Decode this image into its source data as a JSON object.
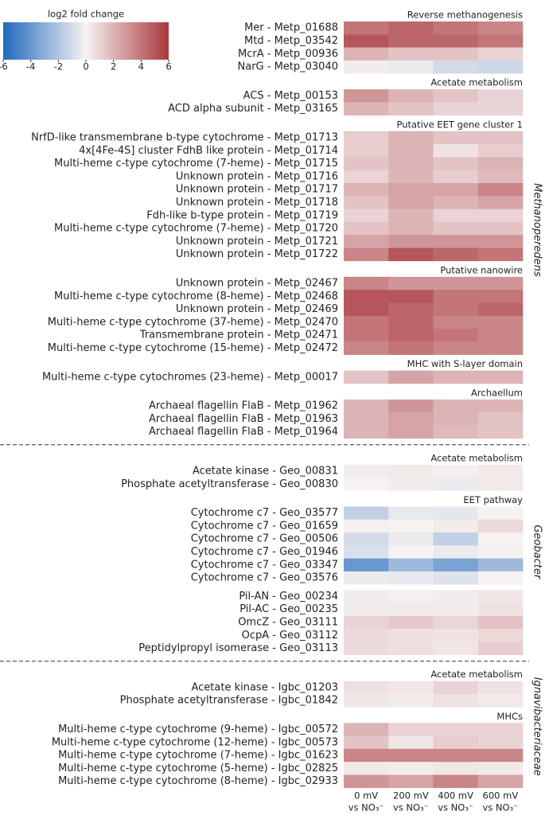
{
  "chart_data": {
    "type": "heatmap",
    "colorbar": {
      "label": "log2 fold change",
      "lim": [
        -6,
        6
      ],
      "ticks": [
        -6,
        -4,
        -2,
        0,
        2,
        4,
        6
      ]
    },
    "columns": [
      [
        "0 mV",
        "vs NO₃⁻"
      ],
      [
        "200 mV",
        "vs NO₃⁻"
      ],
      [
        "400 mV",
        "vs NO₃⁻"
      ],
      [
        "600 mV",
        "vs NO₃⁻"
      ]
    ],
    "organisms": [
      {
        "name": "Methanoperedens",
        "groups": [
          {
            "title": "Reverse methanogenesis",
            "rows": [
              {
                "label": "Mer - Metp_01688",
                "values": [
                  4,
                  4.5,
                  4,
                  3.5
                ]
              },
              {
                "label": "Mtd - Metp_03542",
                "values": [
                  5,
                  4.5,
                  4.5,
                  4
                ]
              },
              {
                "label": "McrA - Metp_00936",
                "values": [
                  2,
                  1.5,
                  1.5,
                  1
                ]
              },
              {
                "label": "NarG - Metp_03040",
                "values": [
                  0.2,
                  -0.3,
                  -1,
                  -1.2
                ]
              }
            ]
          },
          {
            "title": "Acetate metabolism",
            "rows": [
              {
                "label": "ACS - Metp_00153",
                "values": [
                  3,
                  2,
                  1.5,
                  1
                ]
              },
              {
                "label": "ACD alpha subunit - Metp_03165",
                "values": [
                  2,
                  1.5,
                  1,
                  1
                ]
              }
            ]
          },
          {
            "title": "Putative EET gene cluster 1",
            "rows": [
              {
                "label": "NrfD-like transmembrane b-type cytochrome - Metp_01713",
                "values": [
                  1.2,
                  2,
                  1.5,
                  1.5
                ]
              },
              {
                "label": "4x[4Fe-4S] cluster FdhB like protein - Metp_01714",
                "values": [
                  1.2,
                  2,
                  0.5,
                  1.2
                ]
              },
              {
                "label": "Multi-heme c-type cytochrome (7-heme) - Metp_01715",
                "values": [
                  1.5,
                  2,
                  1.5,
                  2
                ]
              },
              {
                "label": "Unknown protein - Metp_01716",
                "values": [
                  1,
                  2,
                  1.2,
                  1.8
                ]
              },
              {
                "label": "Unknown protein - Metp_01717",
                "values": [
                  2,
                  2.5,
                  2.5,
                  3.5
                ]
              },
              {
                "label": "Unknown protein - Metp_01718",
                "values": [
                  1.5,
                  2.5,
                  2,
                  2.5
                ]
              },
              {
                "label": "Fdh-like b-type protein - Metp_01719",
                "values": [
                  1,
                  2,
                  1,
                  1
                ]
              },
              {
                "label": "Multi-heme c-type cytochrome (7-heme) - Metp_01720",
                "values": [
                  1.5,
                  2,
                  1.5,
                  1.5
                ]
              },
              {
                "label": "Unknown protein - Metp_01721",
                "values": [
                  2.5,
                  3,
                  3,
                  3
                ]
              },
              {
                "label": "Unknown protein - Metp_01722",
                "values": [
                  3.5,
                  5,
                  4.5,
                  4
                ]
              }
            ]
          },
          {
            "title": "Putative nanowire",
            "rows": [
              {
                "label": "Unknown protein - Metp_02467",
                "values": [
                  3.5,
                  3,
                  3,
                  3
                ]
              },
              {
                "label": "Multi-heme c-type cytochrome (8-heme) - Metp_02468",
                "values": [
                  5,
                  5,
                  4,
                  4
                ]
              },
              {
                "label": "Unknown protein - Metp_02469",
                "values": [
                  5,
                  4.5,
                  4,
                  4.5
                ]
              },
              {
                "label": "Multi-heme c-type cytochrome (37-heme) - Metp_02470",
                "values": [
                  4,
                  4.5,
                  3.5,
                  3.5
                ]
              },
              {
                "label": "Transmembrane protein - Metp_02471",
                "values": [
                  4,
                  4.5,
                  4,
                  3.5
                ]
              },
              {
                "label": "Multi-heme c-type cytochrome (15-heme) - Metp_02472",
                "values": [
                  3.5,
                  4,
                  3.5,
                  3.5
                ]
              }
            ]
          },
          {
            "title": "MHC with S-layer domain",
            "rows": [
              {
                "label": "Multi-heme c-type cytochromes (23-heme) - Metp_00017",
                "values": [
                  1.5,
                  2.5,
                  2,
                  2
                ]
              }
            ]
          },
          {
            "title": "Archaellum",
            "rows": [
              {
                "label": "Archaeal flagellin FlaB - Metp_01962",
                "values": [
                  2,
                  3,
                  2,
                  2
                ]
              },
              {
                "label": "Archaeal flagellin FlaB - Metp_01963",
                "values": [
                  2,
                  2.5,
                  2,
                  1.5
                ]
              },
              {
                "label": "Archaeal flagellin FlaB - Metp_01964",
                "values": [
                  2,
                  2.5,
                  1.8,
                  1.5
                ]
              }
            ]
          }
        ]
      },
      {
        "name": "Geobacter",
        "groups": [
          {
            "title": "Acetate metabolism",
            "rows": [
              {
                "label": "Acetate kinase - Geo_00831",
                "values": [
                  0.2,
                  0.3,
                  0.1,
                  0.3
                ]
              },
              {
                "label": "Phosphate acetyltransferase - Geo_00830",
                "values": [
                  0,
                  0.2,
                  -0.3,
                  0.3
                ]
              }
            ]
          },
          {
            "title": "EET pathway",
            "rows": [
              {
                "label": "Cytochrome c7 - Geo_03577",
                "values": [
                  -1.5,
                  -0.4,
                  -0.5,
                  0
                ]
              },
              {
                "label": "Cytochrome c7 - Geo_01659",
                "values": [
                  0.1,
                  0,
                  0.2,
                  0.8
                ]
              },
              {
                "label": "Cytochrome c7 - Geo_00506",
                "values": [
                  -1,
                  -0.3,
                  -1.5,
                  0
                ]
              },
              {
                "label": "Cytochrome c7 - Geo_01946",
                "values": [
                  -0.8,
                  0,
                  -0.3,
                  0.1
                ]
              },
              {
                "label": "Cytochrome c7 - Geo_03347",
                "values": [
                  -4,
                  -2.5,
                  -3.5,
                  -2.5
                ]
              },
              {
                "label": "Cytochrome c7 - Geo_03576",
                "values": [
                  -0.3,
                  -0.4,
                  -0.7,
                  0
                ]
              }
            ]
          },
          {
            "rows": [
              {
                "label": "Pil-AN - Geo_00234",
                "values": [
                  0.2,
                  0.1,
                  0.2,
                  0.4
                ]
              },
              {
                "label": "Pil-AC - Geo_00235",
                "values": [
                  0.2,
                  0.3,
                  0.2,
                  0.5
                ]
              },
              {
                "label": "OmcZ - Geo_03111",
                "values": [
                  1,
                  1.3,
                  0.9,
                  1.5
                ]
              },
              {
                "label": "OcpA - Geo_03112",
                "values": [
                  0.8,
                  0.6,
                  0.5,
                  0.8
                ]
              },
              {
                "label": "Peptidylpropyl isomerase - Geo_03113",
                "values": [
                  0.8,
                  0.6,
                  0.4,
                  1.2
                ]
              }
            ]
          }
        ]
      },
      {
        "name": "Ignavibacteriaceae",
        "groups": [
          {
            "title": "Acetate metabolism",
            "rows": [
              {
                "label": "Acetate kinase - Igbc_01203",
                "values": [
                  0.6,
                  0.4,
                  1,
                  0.5
                ]
              },
              {
                "label": "Phosphate acetyltransferase - Igbc_01842",
                "values": [
                  0.4,
                  0.2,
                  0.5,
                  0.3
                ]
              }
            ]
          },
          {
            "title": "MHCs",
            "rows": [
              {
                "label": "Multi-heme c-type cytochrome (9-heme) - Igbc_00572",
                "values": [
                  2,
                  1,
                  1,
                  1
                ]
              },
              {
                "label": "Multi-heme c-type cytochrome (12-heme) - Igbc_00573",
                "values": [
                  1.5,
                  0.4,
                  1.2,
                  1
                ]
              },
              {
                "label": "Multi-heme c-type cytochrome (7-heme) - Igbc_01623",
                "values": [
                  3.5,
                  3.5,
                  3.5,
                  3.5
                ]
              },
              {
                "label": "Multi-heme c-type cytochrome (5-heme) - Igbc_02825",
                "values": [
                  0.3,
                  0.2,
                  0.4,
                  0.3
                ]
              },
              {
                "label": "Multi-heme c-type cytochrome (8-heme) - Igbc_02933",
                "values": [
                  3,
                  2.5,
                  3.5,
                  2.5
                ]
              }
            ]
          }
        ]
      }
    ]
  }
}
